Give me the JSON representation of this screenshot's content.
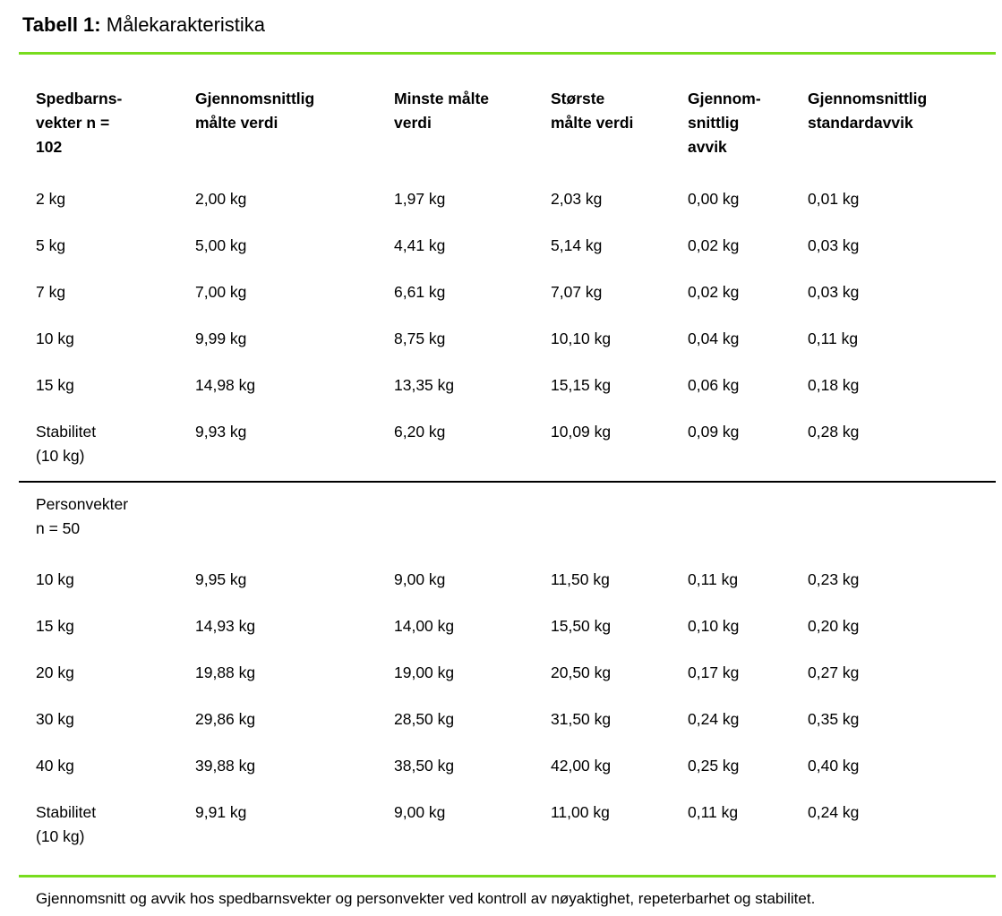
{
  "title": {
    "label": "Tabell 1:",
    "text": "Målekarakteristika"
  },
  "colors": {
    "accent_green": "#78DC1E",
    "divider_black": "#000000",
    "text": "#000000"
  },
  "table": {
    "columns": [
      "Spedbarns-\nvekter n =\n102",
      "Gjennomsnittlig\nmålte verdi",
      "Minste målte\nverdi",
      "Største\nmålte verdi",
      "Gjennom-\nsnittlig\navvik",
      "Gjennomsnittlig\nstandardavvik"
    ],
    "sections": [
      {
        "label": "",
        "rows": [
          [
            "2 kg",
            "2,00 kg",
            "1,97 kg",
            "2,03 kg",
            "0,00 kg",
            "0,01 kg"
          ],
          [
            "5 kg",
            "5,00 kg",
            "4,41 kg",
            "5,14 kg",
            "0,02 kg",
            "0,03 kg"
          ],
          [
            "7 kg",
            "7,00 kg",
            "6,61 kg",
            "7,07 kg",
            "0,02 kg",
            "0,03 kg"
          ],
          [
            "10 kg",
            "9,99 kg",
            "8,75 kg",
            "10,10 kg",
            "0,04 kg",
            "0,11 kg"
          ],
          [
            "15 kg",
            "14,98 kg",
            "13,35 kg",
            "15,15 kg",
            "0,06 kg",
            "0,18 kg"
          ],
          [
            "Stabilitet\n(10 kg)",
            "9,93 kg",
            "6,20 kg",
            "10,09 kg",
            "0,09 kg",
            "0,28 kg"
          ]
        ]
      },
      {
        "label": "Personvekter\nn = 50",
        "rows": [
          [
            "10 kg",
            "9,95 kg",
            "9,00 kg",
            "11,50 kg",
            "0,11 kg",
            "0,23 kg"
          ],
          [
            "15 kg",
            "14,93 kg",
            "14,00 kg",
            "15,50 kg",
            "0,10 kg",
            "0,20 kg"
          ],
          [
            "20 kg",
            "19,88 kg",
            "19,00 kg",
            "20,50 kg",
            "0,17 kg",
            "0,27 kg"
          ],
          [
            "30 kg",
            "29,86 kg",
            "28,50 kg",
            "31,50 kg",
            "0,24 kg",
            "0,35 kg"
          ],
          [
            "40 kg",
            "39,88 kg",
            "38,50 kg",
            "42,00 kg",
            "0,25 kg",
            "0,40 kg"
          ],
          [
            "Stabilitet\n(10 kg)",
            "9,91 kg",
            "9,00 kg",
            "11,00 kg",
            "0,11 kg",
            "0,24 kg"
          ]
        ]
      }
    ]
  },
  "caption": "Gjennomsnitt og avvik hos spedbarnsvekter og personvekter ved kontroll av nøyaktighet, repeterbarhet og stabilitet."
}
